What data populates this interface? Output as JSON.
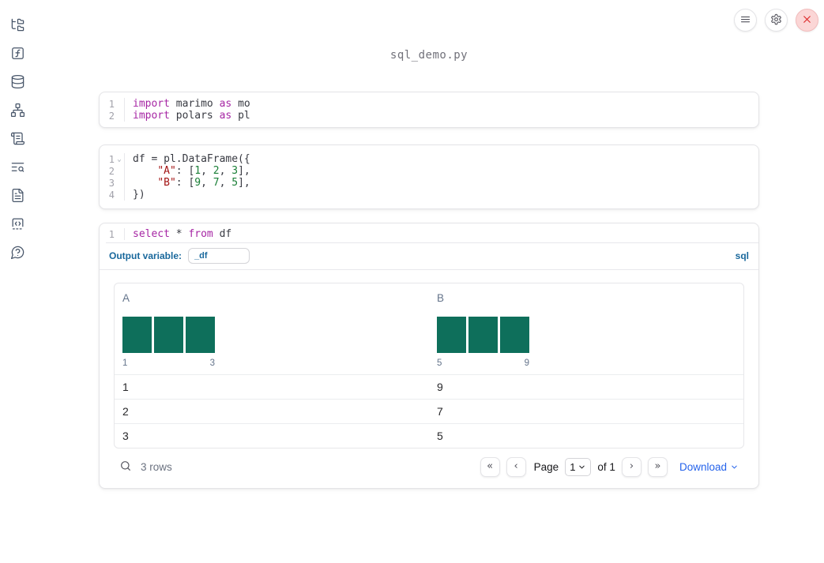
{
  "app": {
    "title": "sql_demo.py"
  },
  "topbar": {
    "buttons": [
      {
        "name": "menu",
        "icon": "hamburger-icon"
      },
      {
        "name": "settings",
        "icon": "gear-icon"
      },
      {
        "name": "shutdown",
        "icon": "close-icon"
      }
    ]
  },
  "sidebar": {
    "items": [
      "file-explorer",
      "variables",
      "data-sources",
      "dependency-graph",
      "scratchpad",
      "logs",
      "documentation",
      "snippets",
      "help"
    ]
  },
  "cells": [
    {
      "lines": [
        {
          "n": "1",
          "tokens": [
            [
              "import",
              "kw"
            ],
            [
              " marimo ",
              "pl"
            ],
            [
              "as",
              "kw"
            ],
            [
              " mo",
              "pl"
            ]
          ]
        },
        {
          "n": "2",
          "tokens": [
            [
              "import",
              "kw"
            ],
            [
              " polars ",
              "pl"
            ],
            [
              "as",
              "kw"
            ],
            [
              " pl",
              "pl"
            ]
          ]
        }
      ]
    },
    {
      "lines": [
        {
          "n": "1",
          "fold": true,
          "tokens": [
            [
              "df = pl.DataFrame({",
              "pl"
            ]
          ]
        },
        {
          "n": "2",
          "tokens": [
            [
              "    ",
              "pl"
            ],
            [
              "\"A\"",
              "str"
            ],
            [
              ": [",
              "pl"
            ],
            [
              "1",
              "num"
            ],
            [
              ", ",
              "pl"
            ],
            [
              "2",
              "num"
            ],
            [
              ", ",
              "pl"
            ],
            [
              "3",
              "num"
            ],
            [
              "],",
              "pl"
            ]
          ]
        },
        {
          "n": "3",
          "tokens": [
            [
              "    ",
              "pl"
            ],
            [
              "\"B\"",
              "str"
            ],
            [
              ": [",
              "pl"
            ],
            [
              "9",
              "num"
            ],
            [
              ", ",
              "pl"
            ],
            [
              "7",
              "num"
            ],
            [
              ", ",
              "pl"
            ],
            [
              "5",
              "num"
            ],
            [
              "],",
              "pl"
            ]
          ]
        },
        {
          "n": "4",
          "tokens": [
            [
              "})",
              "pl"
            ]
          ]
        }
      ]
    },
    {
      "lines": [
        {
          "n": "1",
          "tokens": [
            [
              "select",
              "kw"
            ],
            [
              " * ",
              "pl"
            ],
            [
              "from",
              "kw"
            ],
            [
              " df",
              "pl"
            ]
          ]
        }
      ]
    }
  ],
  "sql_cell": {
    "output_variable_label": "Output variable:",
    "output_variable_value": "_df",
    "language_badge": "sql"
  },
  "table": {
    "columns": [
      {
        "name": "A",
        "bars": [
          1,
          1,
          1
        ],
        "hist_labels": [
          "1",
          "3"
        ],
        "bar_color": "#0e6f5b"
      },
      {
        "name": "B",
        "bars": [
          1,
          1,
          1
        ],
        "hist_labels": [
          "5",
          "9"
        ],
        "bar_color": "#0e6f5b"
      }
    ],
    "rows": [
      [
        "1",
        "9"
      ],
      [
        "2",
        "7"
      ],
      [
        "3",
        "5"
      ]
    ],
    "footer": {
      "row_count": "3 rows",
      "first_page": "«",
      "prev_page": "‹",
      "page_label": "Page",
      "page_value": "1",
      "of_label": "of 1",
      "next_page": "›",
      "last_page": "»",
      "download_label": "Download"
    }
  },
  "colors": {
    "accent_blue": "#19689c",
    "link_blue": "#2563eb",
    "histogram_teal": "#0e6f5b",
    "keyword": "#a626a4",
    "string": "#a31515",
    "number": "#1a7f37",
    "close_red": "#dc2626"
  }
}
